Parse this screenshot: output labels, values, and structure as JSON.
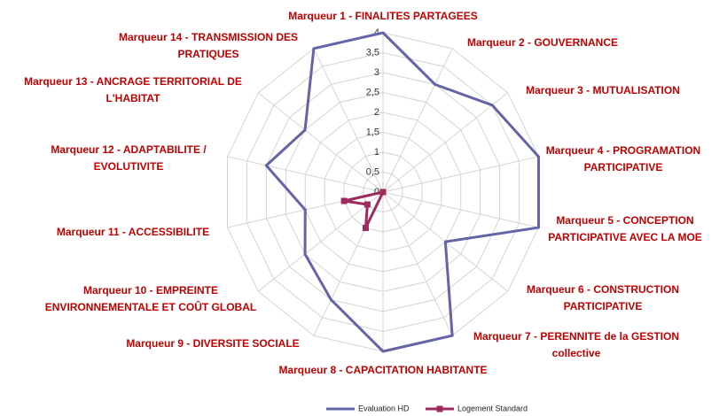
{
  "chart_data": {
    "type": "radar",
    "categories": [
      "Marqueur 1 - FINALITES PARTAGEES",
      "Marqueur 2 - GOUVERNANCE",
      "Marqueur 3 - MUTUALISATION",
      "Marqueur 4 - PROGRAMATION PARTICIPATIVE",
      "Marqueur 5 - CONCEPTION PARTICIPATIVE AVEC LA MOE",
      "Marqueur 6 - CONSTRUCTION PARTICIPATIVE",
      "Marqueur 7 - PERENNITE de la GESTION collective",
      "Marqueur 8 - CAPACITATION HABITANTE",
      "Marqueur 9 - DIVERSITE SOCIALE",
      "Marqueur 10 - EMPREINTE ENVIRONNEMENTALE ET COÛT GLOBAL",
      "Marqueur 11 - ACCESSIBILITE",
      "Marqueur 12 - ADAPTABILITE / EVOLUTIVITE",
      "Marqueur 13 - ANCRAGE TERRITORIAL DE L'HABITAT",
      "Marqueur 14 - TRANSMISSION DES PRATIQUES"
    ],
    "series": [
      {
        "name": "Evaluation HD",
        "color": "#6464a8",
        "values": [
          4,
          3,
          3.5,
          4,
          4,
          2,
          4,
          4,
          3,
          2.5,
          2,
          3,
          2.5,
          4
        ]
      },
      {
        "name": "Logement Standard",
        "color": "#9e2a5e",
        "values": [
          0,
          0,
          0,
          0,
          0,
          0,
          0,
          0,
          1,
          0.5,
          1,
          0,
          0,
          0
        ]
      }
    ],
    "rlim": [
      0,
      4
    ],
    "rticks": [
      0,
      {
        "value": 0.5,
        "label": "0,5"
      },
      1,
      {
        "value": 1.5,
        "label": "1,5"
      },
      2,
      {
        "value": 2.5,
        "label": "2,5"
      },
      3,
      {
        "value": 3.5,
        "label": "3,5"
      },
      4
    ],
    "grid": true,
    "legend": "bottom"
  }
}
